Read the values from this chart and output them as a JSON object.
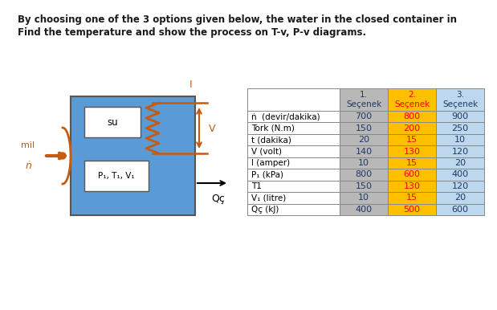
{
  "title_line1": "By choosing one of the 3 options given below, the water in the closed container in",
  "title_line2": "Find the temperature and show the process on T-v, P-v diagrams.",
  "diagram": {
    "box_color": "#5b9bd5",
    "arrow_color": "#c55a11",
    "shaft_color": "#c55a11"
  },
  "table": {
    "row_labels": [
      "ṅ  (devir/dakika)",
      "Tork (N.m)",
      "t (dakika)",
      "V (volt)",
      "I (amper)",
      "P₁ (kPa)",
      "T1",
      "V₁ (litre)",
      "Qç (kJ)"
    ],
    "col1_values": [
      "700",
      "150",
      "20",
      "140",
      "10",
      "800",
      "150",
      "10",
      "400"
    ],
    "col2_values": [
      "800",
      "200",
      "15",
      "130",
      "15",
      "600",
      "130",
      "15",
      "500"
    ],
    "col3_values": [
      "900",
      "250",
      "10",
      "120",
      "20",
      "400",
      "120",
      "20",
      "600"
    ],
    "col2_text_color": "#ff0000",
    "col2_bg_color": "#ffc000",
    "col1_bg_color": "#b8b8b8",
    "col3_bg_color": "#bdd7ee",
    "label_col_bg": "#ffffff",
    "border_color": "#888888",
    "header_col1_text": "#1f3864",
    "header_col2_text": "#ff0000",
    "header_col3_text": "#1f3864",
    "data_col1_text": "#1f3864",
    "data_col3_text": "#1f3864"
  },
  "bg_color": "#ffffff",
  "figsize": [
    6.19,
    3.86
  ],
  "dpi": 100
}
